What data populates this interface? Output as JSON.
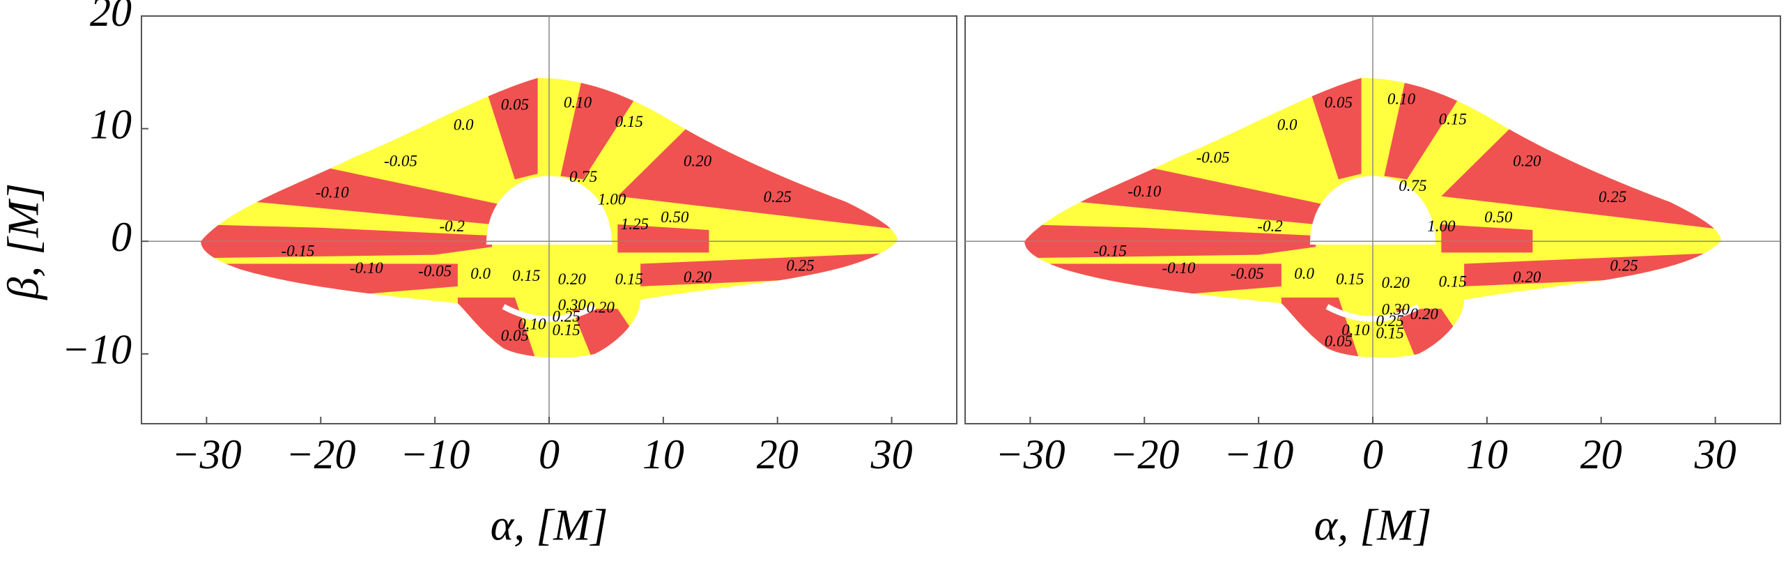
{
  "chart_data": [
    {
      "type": "contour",
      "xlabel": "α, [M]",
      "ylabel": "β, [M]",
      "xlim": [
        -35.7,
        35.7
      ],
      "ylim": [
        -16.2,
        20
      ],
      "xticks": [
        {
          "value": -30,
          "label": "−30"
        },
        {
          "value": -20,
          "label": "−20"
        },
        {
          "value": -10,
          "label": "−10"
        },
        0,
        10,
        20,
        30
      ],
      "yticks": [
        {
          "value": -10,
          "label": "−10"
        },
        0,
        10,
        20
      ],
      "colors": [
        "#f05252",
        "#ffff40"
      ],
      "contour_labels": [
        {
          "value": 0,
          "label": "0.0",
          "x": -7.5,
          "y": 10.2
        },
        {
          "value": 0.05,
          "label": "0.05",
          "x": -3,
          "y": 12
        },
        {
          "value": 0.1,
          "label": "0.10",
          "x": 2.5,
          "y": 12.2
        },
        {
          "value": 0.15,
          "label": "0.15",
          "x": 7,
          "y": 10.5
        },
        {
          "value": 0.2,
          "label": "0.20",
          "x": 13,
          "y": 7
        },
        {
          "value": 0.25,
          "label": "0.25",
          "x": 20,
          "y": 3.8
        },
        {
          "value": 0.5,
          "label": "0.50",
          "x": 11,
          "y": 2
        },
        {
          "value": 0.75,
          "label": "0.75",
          "x": 3,
          "y": 5.6
        },
        {
          "value": 1,
          "label": "1.00",
          "x": 5.5,
          "y": 3.6
        },
        {
          "value": 1.25,
          "label": "1.25",
          "x": 7.5,
          "y": 1.4
        },
        {
          "value": -0.05,
          "label": "-0.05",
          "x": -13,
          "y": 7
        },
        {
          "value": -0.1,
          "label": "-0.10",
          "x": -19,
          "y": 4.2
        },
        {
          "value": -0.2,
          "label": "-0.2",
          "x": -8.5,
          "y": 1.2
        },
        {
          "value": -0.15,
          "label": "-0.15",
          "x": -22,
          "y": -1
        },
        {
          "value": -0.1,
          "label": "-0.10",
          "x": -16,
          "y": -2.5
        },
        {
          "value": -0.05,
          "label": "-0.05",
          "x": -10,
          "y": -2.8
        },
        {
          "value": 0,
          "label": "0.0",
          "x": -6,
          "y": -3
        },
        {
          "value": 0.15,
          "label": "0.15",
          "x": -2,
          "y": -3.2
        },
        {
          "value": 0.2,
          "label": "0.20",
          "x": 2,
          "y": -3.5
        },
        {
          "value": 0.15,
          "label": "0.15",
          "x": 7,
          "y": -3.5
        },
        {
          "value": 0.2,
          "label": "0.20",
          "x": 13,
          "y": -3.3
        },
        {
          "value": 0.25,
          "label": "0.25",
          "x": 22,
          "y": -2.3
        },
        {
          "value": 0.3,
          "label": "0.30",
          "x": 2,
          "y": -5.8
        },
        {
          "value": 0.25,
          "label": "0.25",
          "x": 1.5,
          "y": -6.8
        },
        {
          "value": 0.2,
          "label": "0.20",
          "x": 4.5,
          "y": -6
        },
        {
          "value": 0.15,
          "label": "0.15",
          "x": 1.5,
          "y": -8
        },
        {
          "value": 0.1,
          "label": "0.10",
          "x": -1.5,
          "y": -7.5
        },
        {
          "value": 0.05,
          "label": "0.05",
          "x": -3,
          "y": -8.5
        }
      ]
    },
    {
      "type": "contour",
      "xlabel": "α, [M]",
      "xlim": [
        -35.7,
        35.7
      ],
      "ylim": [
        -16.2,
        20
      ],
      "xticks": [
        {
          "value": -30,
          "label": "−30"
        },
        {
          "value": -20,
          "label": "−20"
        },
        {
          "value": -10,
          "label": "−10"
        },
        0,
        10,
        20,
        30
      ],
      "colors": [
        "#f05252",
        "#ffff40"
      ],
      "contour_labels": [
        {
          "value": 0,
          "label": "0.0",
          "x": -7.5,
          "y": 10.2
        },
        {
          "value": 0.05,
          "label": "0.05",
          "x": -3,
          "y": 12.2
        },
        {
          "value": 0.1,
          "label": "0.10",
          "x": 2.5,
          "y": 12.5
        },
        {
          "value": 0.15,
          "label": "0.15",
          "x": 7,
          "y": 10.7
        },
        {
          "value": 0.2,
          "label": "0.20",
          "x": 13.5,
          "y": 7
        },
        {
          "value": 0.25,
          "label": "0.25",
          "x": 21,
          "y": 3.8
        },
        {
          "value": 0.5,
          "label": "0.50",
          "x": 11,
          "y": 2
        },
        {
          "value": 0.75,
          "label": "0.75",
          "x": 3.5,
          "y": 4.8
        },
        {
          "value": 1,
          "label": "1.00",
          "x": 6,
          "y": 1.2
        },
        {
          "value": -0.05,
          "label": "-0.05",
          "x": -14,
          "y": 7.3
        },
        {
          "value": -0.1,
          "label": "-0.10",
          "x": -20,
          "y": 4.3
        },
        {
          "value": -0.2,
          "label": "-0.2",
          "x": -9,
          "y": 1.2
        },
        {
          "value": -0.15,
          "label": "-0.15",
          "x": -23,
          "y": -1
        },
        {
          "value": -0.1,
          "label": "-0.10",
          "x": -17,
          "y": -2.5
        },
        {
          "value": -0.05,
          "label": "-0.05",
          "x": -11,
          "y": -3
        },
        {
          "value": 0,
          "label": "0.0",
          "x": -6,
          "y": -3
        },
        {
          "value": 0.15,
          "label": "0.15",
          "x": -2,
          "y": -3.5
        },
        {
          "value": 0.2,
          "label": "0.20",
          "x": 2,
          "y": -3.8
        },
        {
          "value": 0.15,
          "label": "0.15",
          "x": 7,
          "y": -3.7
        },
        {
          "value": 0.2,
          "label": "0.20",
          "x": 13.5,
          "y": -3.3
        },
        {
          "value": 0.25,
          "label": "0.25",
          "x": 22,
          "y": -2.3
        },
        {
          "value": 0.3,
          "label": "0.30",
          "x": 2,
          "y": -6.2
        },
        {
          "value": 0.25,
          "label": "0.25",
          "x": 1.5,
          "y": -7.2
        },
        {
          "value": 0.2,
          "label": "0.20",
          "x": 4.5,
          "y": -6.6
        },
        {
          "value": 0.15,
          "label": "0.15",
          "x": 1.5,
          "y": -8.3
        },
        {
          "value": 0.1,
          "label": "0.10",
          "x": -1.5,
          "y": -8
        },
        {
          "value": 0.05,
          "label": "0.05",
          "x": -3,
          "y": -9
        }
      ]
    }
  ]
}
